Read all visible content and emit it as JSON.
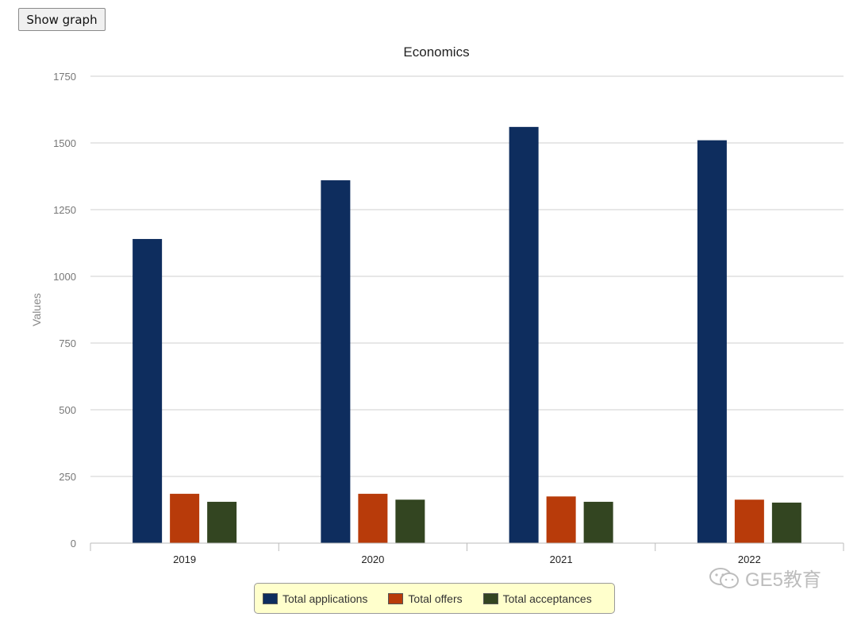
{
  "toolbar": {
    "show_graph_label": "Show graph"
  },
  "watermark": {
    "text": "GE5教育"
  },
  "chart_data": {
    "type": "bar",
    "title": "Economics",
    "xlabel": "",
    "ylabel": "Values",
    "ylim": [
      0,
      1750
    ],
    "yticks": [
      0,
      250,
      500,
      750,
      1000,
      1250,
      1500,
      1750
    ],
    "grid": true,
    "legend_position": "bottom",
    "categories": [
      "2019",
      "2020",
      "2021",
      "2022"
    ],
    "series": [
      {
        "name": "Total applications",
        "color": "#0e2d5e",
        "values": [
          1140,
          1360,
          1560,
          1510
        ]
      },
      {
        "name": "Total offers",
        "color": "#b83b0a",
        "values": [
          185,
          185,
          175,
          163
        ]
      },
      {
        "name": "Total acceptances",
        "color": "#334521",
        "values": [
          155,
          163,
          155,
          152
        ]
      }
    ]
  }
}
